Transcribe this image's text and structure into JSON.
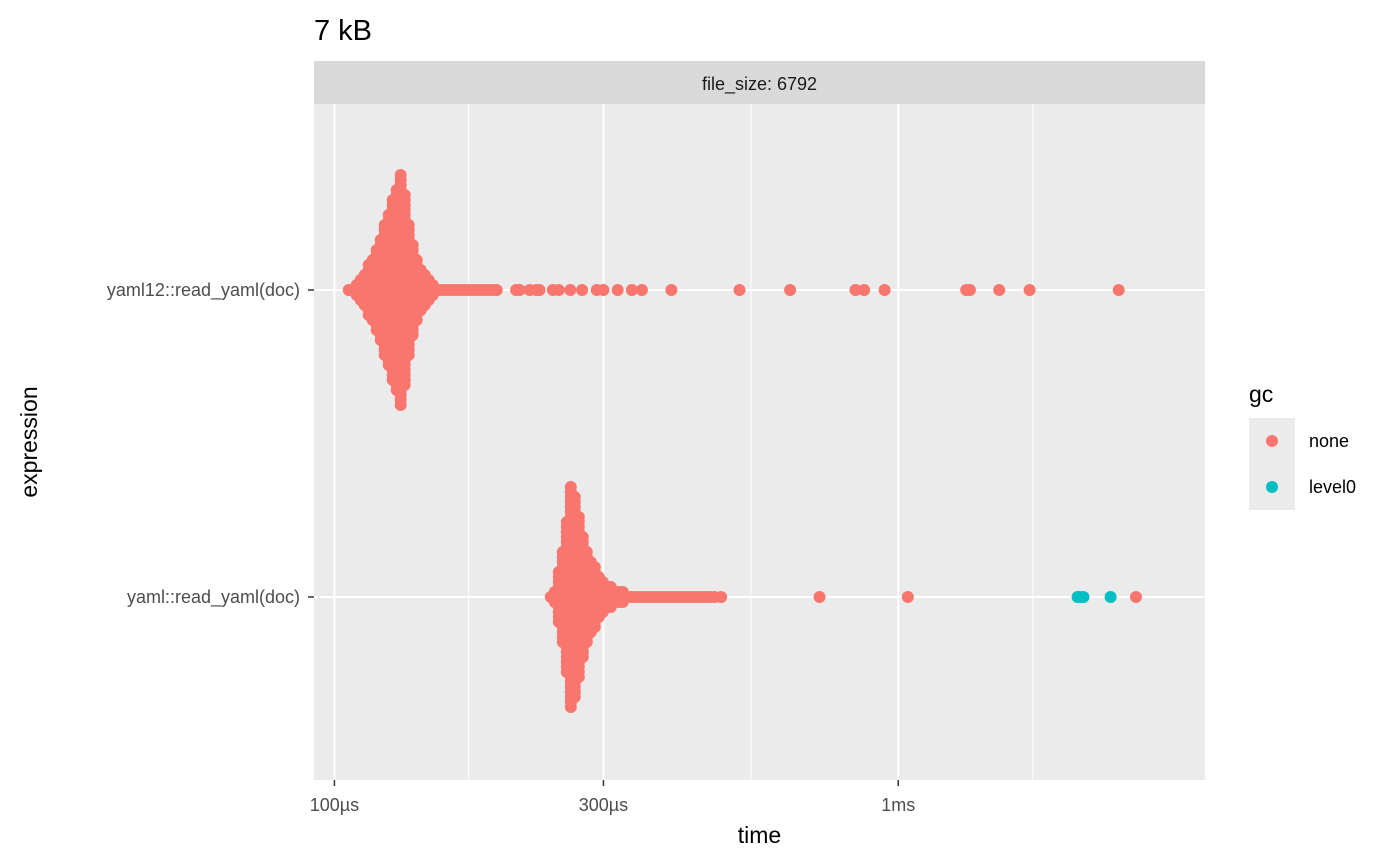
{
  "chart_data": {
    "type": "scatter",
    "subtype": "beeswarm",
    "title": "7 kB",
    "facet_label": "file_size: 6792",
    "xlabel": "time",
    "ylabel": "expression",
    "x_scale": "log10",
    "xlim_us": [
      92,
      3500
    ],
    "x_ticks": [
      {
        "value_us": 100,
        "label": "100µs"
      },
      {
        "value_us": 300,
        "label": "300µs"
      },
      {
        "value_us": 1000,
        "label": "1ms"
      }
    ],
    "x_minor_ticks_us": [
      173,
      548,
      1732
    ],
    "categories": [
      "yaml12::read_yaml(doc)",
      "yaml::read_yaml(doc)"
    ],
    "grid": true,
    "legend": {
      "title": "gc",
      "position": "right",
      "entries": [
        {
          "name": "none",
          "color": "#F8766D"
        },
        {
          "name": "level0",
          "color": "#00BFC4"
        }
      ]
    },
    "series": [
      {
        "category": "yaml12::read_yaml(doc)",
        "distribution": {
          "min_us": 106,
          "mode_us": 132,
          "tail_us": 195
        },
        "outliers": [
          {
            "x_us": 210,
            "gc": "none"
          },
          {
            "x_us": 213,
            "gc": "none"
          },
          {
            "x_us": 222,
            "gc": "none"
          },
          {
            "x_us": 228,
            "gc": "none"
          },
          {
            "x_us": 231,
            "gc": "none"
          },
          {
            "x_us": 244,
            "gc": "none"
          },
          {
            "x_us": 250,
            "gc": "none"
          },
          {
            "x_us": 262,
            "gc": "none"
          },
          {
            "x_us": 275,
            "gc": "none"
          },
          {
            "x_us": 292,
            "gc": "none"
          },
          {
            "x_us": 300,
            "gc": "none"
          },
          {
            "x_us": 318,
            "gc": "none"
          },
          {
            "x_us": 337,
            "gc": "none"
          },
          {
            "x_us": 351,
            "gc": "none"
          },
          {
            "x_us": 396,
            "gc": "none"
          },
          {
            "x_us": 523,
            "gc": "none"
          },
          {
            "x_us": 643,
            "gc": "none"
          },
          {
            "x_us": 840,
            "gc": "none"
          },
          {
            "x_us": 870,
            "gc": "none"
          },
          {
            "x_us": 946,
            "gc": "none"
          },
          {
            "x_us": 1320,
            "gc": "none"
          },
          {
            "x_us": 1340,
            "gc": "none"
          },
          {
            "x_us": 1510,
            "gc": "none"
          },
          {
            "x_us": 1710,
            "gc": "none"
          },
          {
            "x_us": 2460,
            "gc": "none"
          }
        ]
      },
      {
        "category": "yaml::read_yaml(doc)",
        "distribution": {
          "min_us": 242,
          "mode_us": 264,
          "tail_us": 480
        },
        "outliers": [
          {
            "x_us": 485,
            "gc": "none"
          },
          {
            "x_us": 725,
            "gc": "none"
          },
          {
            "x_us": 1040,
            "gc": "none"
          },
          {
            "x_us": 2080,
            "gc": "level0"
          },
          {
            "x_us": 2100,
            "gc": "level0"
          },
          {
            "x_us": 2130,
            "gc": "level0"
          },
          {
            "x_us": 2380,
            "gc": "level0"
          },
          {
            "x_us": 2640,
            "gc": "none"
          }
        ]
      }
    ]
  }
}
